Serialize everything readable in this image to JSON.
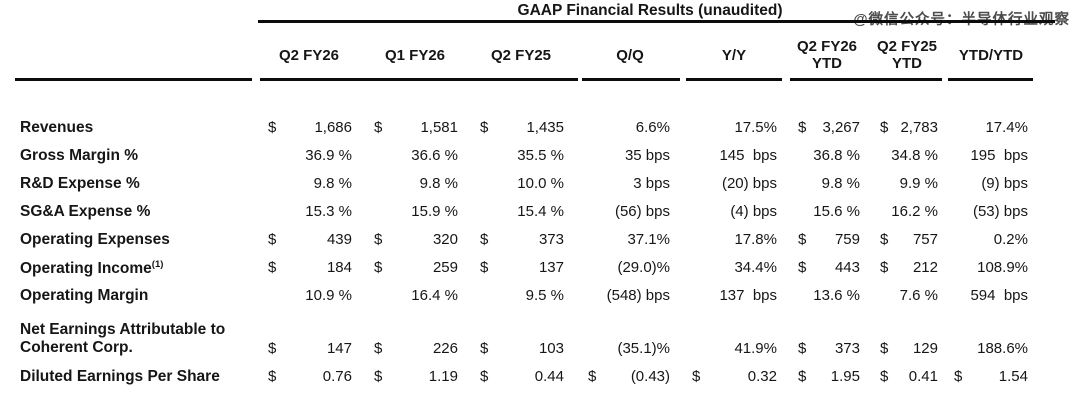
{
  "title": "GAAP Financial Results (unaudited)",
  "watermark": "@微信公众号：半导体行业观察",
  "columns": [
    {
      "label": "Q2 FY26",
      "sub": ""
    },
    {
      "label": "Q1 FY26",
      "sub": ""
    },
    {
      "label": "Q2 FY25",
      "sub": ""
    },
    {
      "label": "Q/Q",
      "sub": ""
    },
    {
      "label": "Y/Y",
      "sub": ""
    },
    {
      "label": "Q2 FY26",
      "sub": "YTD"
    },
    {
      "label": "Q2 FY25",
      "sub": "YTD"
    },
    {
      "label": "YTD/YTD",
      "sub": ""
    }
  ],
  "rows": [
    {
      "label": "Revenues",
      "sup": "",
      "label2": "",
      "cells": [
        {
          "d": "$",
          "v": "1,686"
        },
        {
          "d": "$",
          "v": "1,581"
        },
        {
          "d": "$",
          "v": "1,435"
        },
        {
          "d": "",
          "v": "6.6%"
        },
        {
          "d": "",
          "v": "17.5%"
        },
        {
          "d": "$",
          "v": "3,267"
        },
        {
          "d": "$",
          "v": "2,783"
        },
        {
          "d": "",
          "v": "17.4%"
        }
      ]
    },
    {
      "label": "Gross Margin %",
      "sup": "",
      "label2": "",
      "cells": [
        {
          "d": "",
          "v": "36.9 %"
        },
        {
          "d": "",
          "v": "36.6 %"
        },
        {
          "d": "",
          "v": "35.5 %"
        },
        {
          "d": "",
          "v": "35 bps"
        },
        {
          "d": "",
          "v": "145  bps"
        },
        {
          "d": "",
          "v": "36.8 %"
        },
        {
          "d": "",
          "v": "34.8 %"
        },
        {
          "d": "",
          "v": "195  bps"
        }
      ]
    },
    {
      "label": "R&D Expense %",
      "sup": "",
      "label2": "",
      "cells": [
        {
          "d": "",
          "v": "9.8 %"
        },
        {
          "d": "",
          "v": "9.8 %"
        },
        {
          "d": "",
          "v": "10.0 %"
        },
        {
          "d": "",
          "v": "3 bps"
        },
        {
          "d": "",
          "v": "(20) bps"
        },
        {
          "d": "",
          "v": "9.8 %"
        },
        {
          "d": "",
          "v": "9.9 %"
        },
        {
          "d": "",
          "v": "(9) bps"
        }
      ]
    },
    {
      "label": "SG&A Expense %",
      "sup": "",
      "label2": "",
      "cells": [
        {
          "d": "",
          "v": "15.3 %"
        },
        {
          "d": "",
          "v": "15.9 %"
        },
        {
          "d": "",
          "v": "15.4 %"
        },
        {
          "d": "",
          "v": "(56) bps"
        },
        {
          "d": "",
          "v": "(4) bps"
        },
        {
          "d": "",
          "v": "15.6 %"
        },
        {
          "d": "",
          "v": "16.2 %"
        },
        {
          "d": "",
          "v": "(53) bps"
        }
      ]
    },
    {
      "label": "Operating Expenses",
      "sup": "",
      "label2": "",
      "cells": [
        {
          "d": "$",
          "v": "439"
        },
        {
          "d": "$",
          "v": "320"
        },
        {
          "d": "$",
          "v": "373"
        },
        {
          "d": "",
          "v": "37.1%"
        },
        {
          "d": "",
          "v": "17.8%"
        },
        {
          "d": "$",
          "v": "759"
        },
        {
          "d": "$",
          "v": "757"
        },
        {
          "d": "",
          "v": "0.2%"
        }
      ]
    },
    {
      "label": "Operating Income",
      "sup": "(1)",
      "label2": "",
      "cells": [
        {
          "d": "$",
          "v": "184"
        },
        {
          "d": "$",
          "v": "259"
        },
        {
          "d": "$",
          "v": "137"
        },
        {
          "d": "",
          "v": "(29.0)%"
        },
        {
          "d": "",
          "v": "34.4%"
        },
        {
          "d": "$",
          "v": "443"
        },
        {
          "d": "$",
          "v": "212"
        },
        {
          "d": "",
          "v": "108.9%"
        }
      ]
    },
    {
      "label": "Operating Margin",
      "sup": "",
      "label2": "",
      "cells": [
        {
          "d": "",
          "v": "10.9 %"
        },
        {
          "d": "",
          "v": "16.4 %"
        },
        {
          "d": "",
          "v": "9.5 %"
        },
        {
          "d": "",
          "v": "(548) bps"
        },
        {
          "d": "",
          "v": "137  bps"
        },
        {
          "d": "",
          "v": "13.6 %"
        },
        {
          "d": "",
          "v": "7.6 %"
        },
        {
          "d": "",
          "v": "594  bps"
        }
      ]
    },
    {
      "label": "Net Earnings Attributable to",
      "sup": "",
      "label2": "Coherent Corp.",
      "cells": [
        {
          "d": "$",
          "v": "147"
        },
        {
          "d": "$",
          "v": "226"
        },
        {
          "d": "$",
          "v": "103"
        },
        {
          "d": "",
          "v": "(35.1)%"
        },
        {
          "d": "",
          "v": "41.9%"
        },
        {
          "d": "$",
          "v": "373"
        },
        {
          "d": "$",
          "v": "129"
        },
        {
          "d": "",
          "v": "188.6%"
        }
      ]
    },
    {
      "label": "Diluted Earnings Per Share",
      "sup": "",
      "label2": "",
      "cells": [
        {
          "d": "$",
          "v": "0.76"
        },
        {
          "d": "$",
          "v": "1.19"
        },
        {
          "d": "$",
          "v": "0.44"
        },
        {
          "d": "$",
          "v": "(0.43)"
        },
        {
          "d": "$",
          "v": "0.32"
        },
        {
          "d": "$",
          "v": "1.95"
        },
        {
          "d": "$",
          "v": "0.41"
        },
        {
          "d": "$",
          "v": "1.54"
        }
      ]
    }
  ]
}
